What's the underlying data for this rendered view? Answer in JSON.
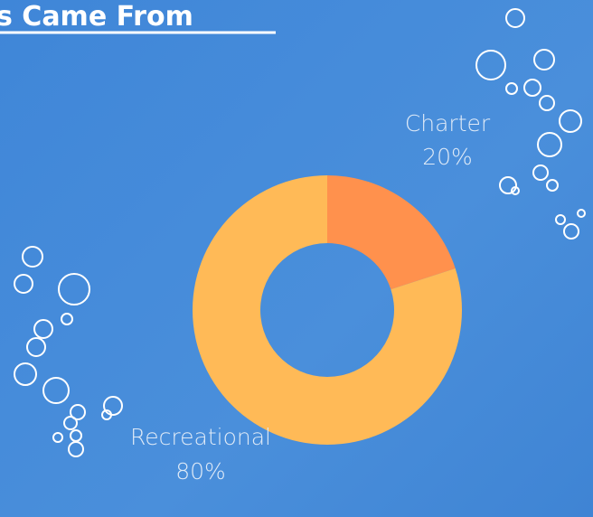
{
  "title": "s Came From",
  "chart_data": {
    "type": "donut",
    "categories": [
      "Charter",
      "Recreational"
    ],
    "values": [
      20,
      80
    ],
    "value_labels": [
      "20%",
      "80%"
    ],
    "colors": [
      "#ff914d",
      "#ffba57"
    ]
  }
}
